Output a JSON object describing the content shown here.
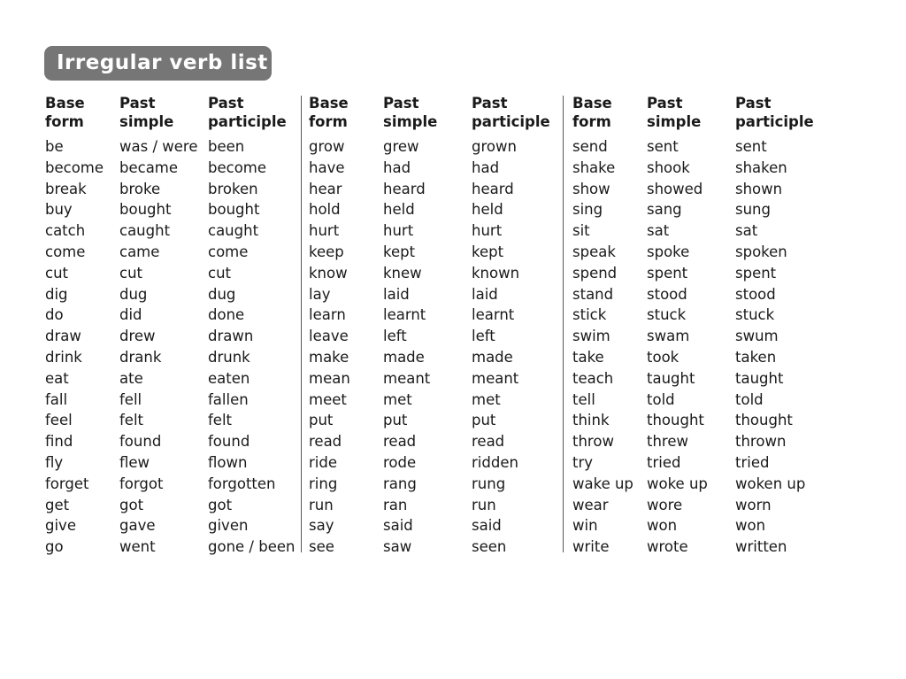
{
  "title": "Irregular verb list",
  "headers": [
    {
      "line1": "Base",
      "line2": "form"
    },
    {
      "line1": "Past",
      "line2": "simple"
    },
    {
      "line1": "Past",
      "line2": "participle"
    }
  ],
  "groups": [
    {
      "rows": [
        [
          "be",
          "was / were",
          "been"
        ],
        [
          "become",
          "became",
          "become"
        ],
        [
          "break",
          "broke",
          "broken"
        ],
        [
          "buy",
          "bought",
          "bought"
        ],
        [
          "catch",
          "caught",
          "caught"
        ],
        [
          "come",
          "came",
          "come"
        ],
        [
          "cut",
          "cut",
          "cut"
        ],
        [
          "dig",
          "dug",
          "dug"
        ],
        [
          "do",
          "did",
          "done"
        ],
        [
          "draw",
          "drew",
          "drawn"
        ],
        [
          "drink",
          "drank",
          "drunk"
        ],
        [
          "eat",
          "ate",
          "eaten"
        ],
        [
          "fall",
          "fell",
          "fallen"
        ],
        [
          "feel",
          "felt",
          "felt"
        ],
        [
          "find",
          "found",
          "found"
        ],
        [
          "fly",
          "flew",
          "flown"
        ],
        [
          "forget",
          "forgot",
          "forgotten"
        ],
        [
          "get",
          "got",
          "got"
        ],
        [
          "give",
          "gave",
          "given"
        ],
        [
          "go",
          "went",
          "gone / been"
        ]
      ]
    },
    {
      "rows": [
        [
          "grow",
          "grew",
          "grown"
        ],
        [
          "have",
          "had",
          "had"
        ],
        [
          "hear",
          "heard",
          "heard"
        ],
        [
          "hold",
          "held",
          "held"
        ],
        [
          "hurt",
          "hurt",
          "hurt"
        ],
        [
          "keep",
          "kept",
          "kept"
        ],
        [
          "know",
          "knew",
          "known"
        ],
        [
          "lay",
          "laid",
          "laid"
        ],
        [
          "learn",
          "learnt",
          "learnt"
        ],
        [
          "leave",
          "left",
          "left"
        ],
        [
          "make",
          "made",
          "made"
        ],
        [
          "mean",
          "meant",
          "meant"
        ],
        [
          "meet",
          "met",
          "met"
        ],
        [
          "put",
          "put",
          "put"
        ],
        [
          "read",
          "read",
          "read"
        ],
        [
          "ride",
          "rode",
          "ridden"
        ],
        [
          "ring",
          "rang",
          "rung"
        ],
        [
          "run",
          "ran",
          "run"
        ],
        [
          "say",
          "said",
          "said"
        ],
        [
          "see",
          "saw",
          "seen"
        ]
      ]
    },
    {
      "rows": [
        [
          "send",
          "sent",
          "sent"
        ],
        [
          "shake",
          "shook",
          "shaken"
        ],
        [
          "show",
          "showed",
          "shown"
        ],
        [
          "sing",
          "sang",
          "sung"
        ],
        [
          "sit",
          "sat",
          "sat"
        ],
        [
          "speak",
          "spoke",
          "spoken"
        ],
        [
          "spend",
          "spent",
          "spent"
        ],
        [
          "stand",
          "stood",
          "stood"
        ],
        [
          "stick",
          "stuck",
          "stuck"
        ],
        [
          "swim",
          "swam",
          "swum"
        ],
        [
          "take",
          "took",
          "taken"
        ],
        [
          "teach",
          "taught",
          "taught"
        ],
        [
          "tell",
          "told",
          "told"
        ],
        [
          "think",
          "thought",
          "thought"
        ],
        [
          "throw",
          "threw",
          "thrown"
        ],
        [
          "try",
          "tried",
          "tried"
        ],
        [
          "wake up",
          "woke up",
          "woken up"
        ],
        [
          "wear",
          "wore",
          "worn"
        ],
        [
          "win",
          "won",
          "won"
        ],
        [
          "write",
          "wrote",
          "written"
        ]
      ]
    }
  ]
}
